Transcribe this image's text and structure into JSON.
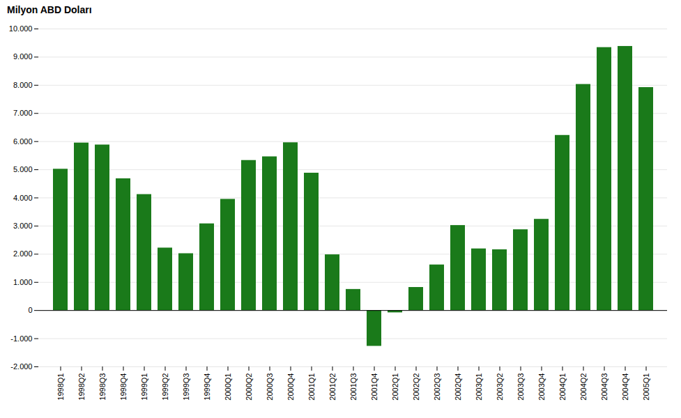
{
  "chart_data": {
    "type": "bar",
    "title": "Milyon ABD Doları",
    "categories": [
      "1998Q1",
      "1998Q2",
      "1998Q3",
      "1998Q4",
      "1999Q1",
      "1999Q2",
      "1999Q3",
      "1999Q4",
      "2000Q1",
      "2000Q2",
      "2000Q3",
      "2000Q4",
      "2001Q1",
      "2001Q2",
      "2001Q3",
      "2001Q4",
      "2002Q1",
      "2002Q2",
      "2002Q3",
      "2002Q4",
      "2003Q1",
      "2003Q2",
      "2003Q3",
      "2003Q4",
      "2004Q1",
      "2004Q2",
      "2004Q3",
      "2004Q4",
      "2005Q1"
    ],
    "values": [
      5020,
      5950,
      5880,
      4680,
      4120,
      2220,
      2020,
      3080,
      3950,
      5330,
      5460,
      5960,
      4880,
      1980,
      750,
      -1270,
      -80,
      820,
      1620,
      3020,
      2190,
      2160,
      2870,
      3240,
      6220,
      8030,
      9340,
      9380,
      7920
    ],
    "color": "#1a7a1a",
    "ylim": [
      -2000,
      10000
    ],
    "yticks": [
      {
        "value": -2000,
        "label": "-2.000"
      },
      {
        "value": -1000,
        "label": "-1.000"
      },
      0,
      {
        "value": 1000,
        "label": "1.000"
      },
      {
        "value": 2000,
        "label": "2.000"
      },
      {
        "value": 3000,
        "label": "3.000"
      },
      {
        "value": 4000,
        "label": "4.000"
      },
      {
        "value": 5000,
        "label": "5.000"
      },
      {
        "value": 6000,
        "label": "6.000"
      },
      {
        "value": 7000,
        "label": "7.000"
      },
      {
        "value": 8000,
        "label": "8.000"
      },
      {
        "value": 9000,
        "label": "9.000"
      },
      {
        "value": 10000,
        "label": "10.000"
      }
    ],
    "grid": true
  }
}
